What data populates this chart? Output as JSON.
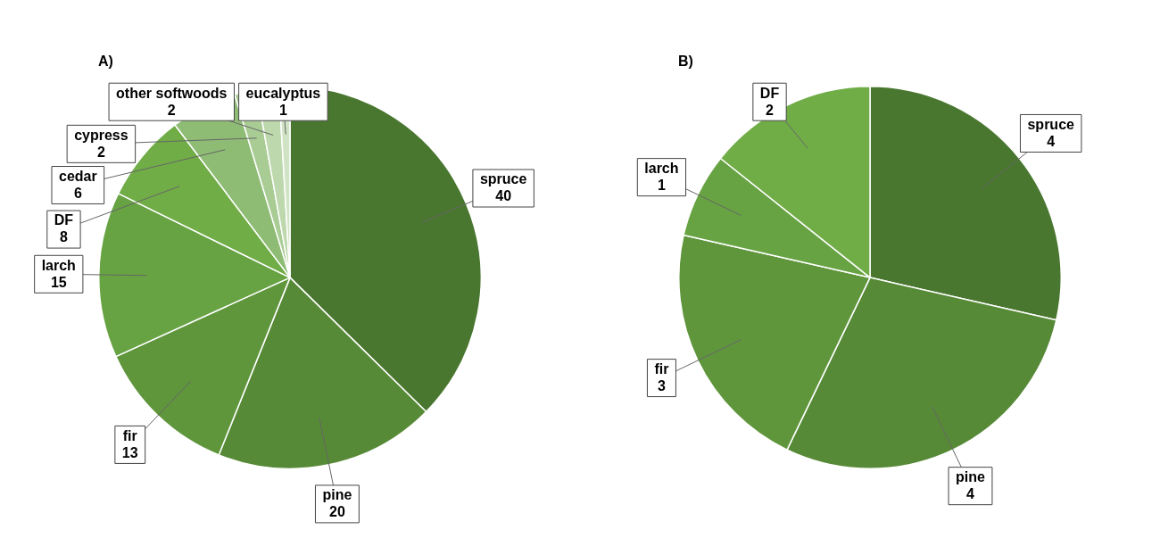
{
  "chart_data": [
    {
      "type": "pie",
      "title": "A)",
      "categories": [
        "spruce",
        "pine",
        "fir",
        "larch",
        "DF",
        "cedar",
        "cypress",
        "other softwoods",
        "eucalyptus"
      ],
      "values": [
        40,
        20,
        13,
        15,
        8,
        6,
        2,
        2,
        1
      ],
      "colors": [
        "#4a7730",
        "#578a37",
        "#5f963c",
        "#67a343",
        "#70ad47",
        "#8fbc75",
        "#a9cc95",
        "#bdd8ad",
        "#d0e3c4"
      ],
      "data_labels": true,
      "legend": false
    },
    {
      "type": "pie",
      "title": "B)",
      "categories": [
        "spruce",
        "pine",
        "fir",
        "larch",
        "DF"
      ],
      "values": [
        4,
        4,
        3,
        1,
        2
      ],
      "colors": [
        "#4a7730",
        "#578a37",
        "#5f963c",
        "#67a343",
        "#70ad47"
      ],
      "data_labels": true,
      "legend": false
    }
  ]
}
